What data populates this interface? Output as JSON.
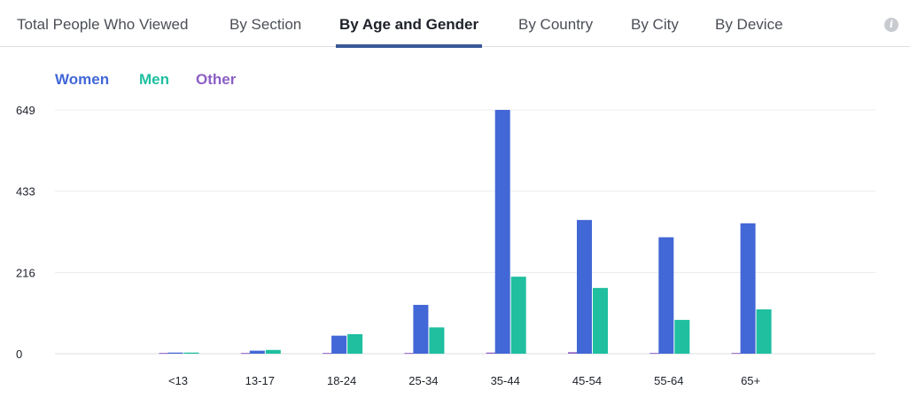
{
  "tabs": [
    {
      "label": "Total People Who Viewed"
    },
    {
      "label": "By Section"
    },
    {
      "label": "By Age and Gender"
    },
    {
      "label": "By Country"
    },
    {
      "label": "By City"
    },
    {
      "label": "By Device"
    }
  ],
  "active_tab": "By Age and Gender",
  "info_icon_glyph": "i",
  "chart_data": {
    "type": "bar",
    "categories": [
      "<13",
      "13-17",
      "18-24",
      "25-34",
      "35-44",
      "45-54",
      "55-64",
      "65+"
    ],
    "series": [
      {
        "name": "Other",
        "color": "#8c5fc4",
        "values": [
          2,
          2,
          2,
          2,
          3,
          4,
          2,
          2
        ]
      },
      {
        "name": "Women",
        "color": "#4267d6",
        "values": [
          3,
          8,
          48,
          130,
          649,
          356,
          310,
          347
        ]
      },
      {
        "name": "Men",
        "color": "#1fbfa0",
        "values": [
          3,
          10,
          52,
          70,
          205,
          175,
          90,
          118
        ]
      }
    ],
    "legend_order": [
      "Women",
      "Men",
      "Other"
    ],
    "y_ticks": [
      "0",
      "216",
      "433",
      "649"
    ],
    "ylim": [
      0,
      649
    ],
    "grid": true,
    "legend_position": "top-left"
  }
}
